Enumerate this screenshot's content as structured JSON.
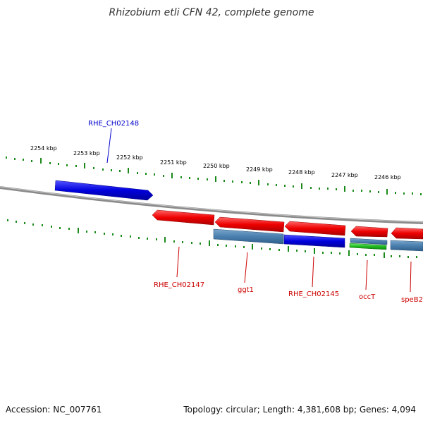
{
  "title": "Rhizobium etli CFN 42, complete genome",
  "footer": {
    "accession": "Accession: NC_007761",
    "stats": "Topology: circular; Length: 4,381,608 bp; Genes: 4,094"
  },
  "scale_labels": [
    "2254 kbp",
    "2253 kbp",
    "2252 kbp",
    "2251 kbp",
    "2250 kbp",
    "2249 kbp",
    "2248 kbp",
    "2247 kbp",
    "2246 kbp"
  ],
  "genes": {
    "RHE_CH02148": "RHE_CH02148",
    "RHE_CH02147": "RHE_CH02147",
    "ggt1": "ggt1",
    "RHE_CH02145": "RHE_CH02145",
    "occT": "occT",
    "speB2": "speB2"
  },
  "colors": {
    "forward_gene": "#0000dd",
    "reverse_gene": "#dd0000",
    "cds": "#4a7fae",
    "rna": "#22bb22",
    "backbone": "#808080",
    "ticks": "#1a8a1a"
  }
}
